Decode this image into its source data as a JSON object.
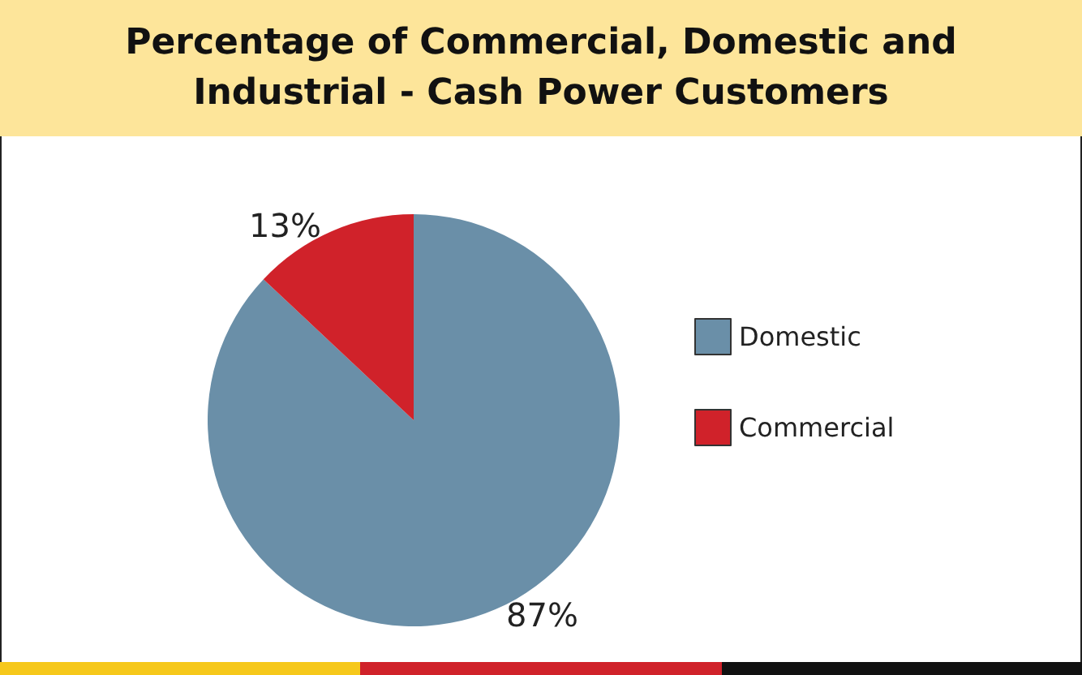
{
  "chart_data": {
    "type": "pie",
    "title": "Percentage of Commercial, Domestic and Industrial - Cash Power Customers",
    "categories": [
      "Domestic",
      "Commercial"
    ],
    "values": [
      87,
      13
    ],
    "colors": [
      "#6a8fa8",
      "#d0222a"
    ],
    "value_labels": [
      "87%",
      "13%"
    ],
    "legend": "right"
  }
}
